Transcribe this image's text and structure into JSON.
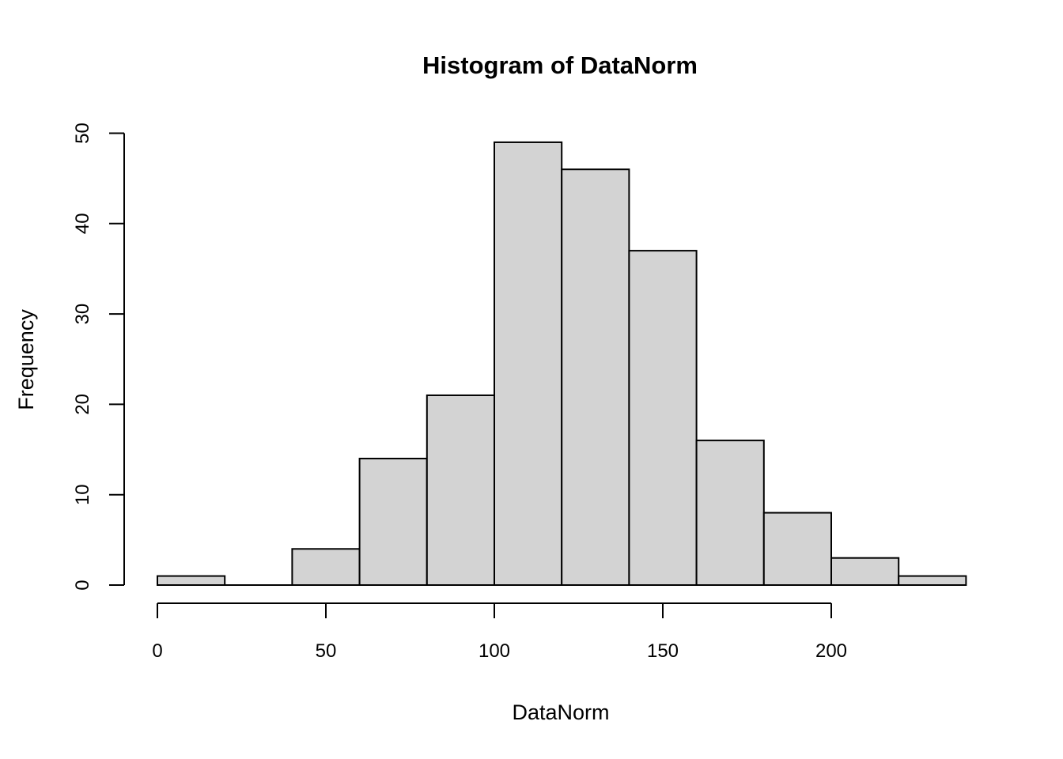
{
  "figure": {
    "title": "Histogram of DataNorm",
    "xlabel": "DataNorm",
    "ylabel": "Frequency"
  },
  "chart_data": {
    "type": "bar",
    "subtype": "histogram",
    "title": "Histogram of DataNorm",
    "xlabel": "DataNorm",
    "ylabel": "Frequency",
    "bin_width": 20,
    "bin_edges": [
      0,
      20,
      40,
      60,
      80,
      100,
      120,
      140,
      160,
      180,
      200,
      220,
      240
    ],
    "counts": [
      1,
      0,
      4,
      14,
      21,
      49,
      46,
      37,
      16,
      8,
      3,
      1
    ],
    "x_ticks": [
      0,
      50,
      100,
      150,
      200
    ],
    "y_ticks": [
      0,
      10,
      20,
      30,
      40,
      50
    ],
    "xlim": [
      0,
      240
    ],
    "ylim": [
      0,
      50
    ],
    "grid": false,
    "legend": null,
    "colors": {
      "bar_fill": "#d3d3d3",
      "bar_stroke": "#000000",
      "axis": "#000000",
      "text": "#000000",
      "background": "#ffffff"
    }
  }
}
